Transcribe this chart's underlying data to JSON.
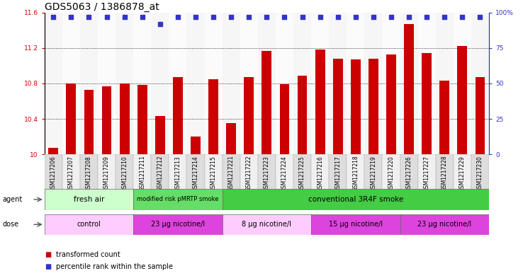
{
  "title": "GDS5063 / 1386878_at",
  "samples": [
    "GSM1217206",
    "GSM1217207",
    "GSM1217208",
    "GSM1217209",
    "GSM1217210",
    "GSM1217211",
    "GSM1217212",
    "GSM1217213",
    "GSM1217214",
    "GSM1217215",
    "GSM1217221",
    "GSM1217222",
    "GSM1217223",
    "GSM1217224",
    "GSM1217225",
    "GSM1217216",
    "GSM1217217",
    "GSM1217218",
    "GSM1217219",
    "GSM1217220",
    "GSM1217226",
    "GSM1217227",
    "GSM1217228",
    "GSM1217229",
    "GSM1217230"
  ],
  "bar_values": [
    10.07,
    10.8,
    10.73,
    10.77,
    10.8,
    10.78,
    10.43,
    10.87,
    10.2,
    10.85,
    10.35,
    10.87,
    11.17,
    10.79,
    10.89,
    11.18,
    11.08,
    11.07,
    11.08,
    11.13,
    11.47,
    11.14,
    10.83,
    11.22,
    10.87
  ],
  "percentile_values": [
    97,
    97,
    97,
    97,
    97,
    97,
    92,
    97,
    97,
    97,
    97,
    97,
    97,
    97,
    97,
    97,
    97,
    97,
    97,
    97,
    97,
    97,
    97,
    97,
    97
  ],
  "bar_color": "#cc0000",
  "percentile_color": "#3333cc",
  "ylim_left": [
    10.0,
    11.6
  ],
  "ylim_right": [
    0,
    100
  ],
  "yticks_left": [
    10.0,
    10.4,
    10.8,
    11.2,
    11.6
  ],
  "ytick_labels_left": [
    "10",
    "10.4",
    "10.8",
    "11.2",
    "11.6"
  ],
  "yticks_right": [
    0,
    25,
    50,
    75,
    100
  ],
  "ytick_labels_right": [
    "0",
    "25",
    "50",
    "75",
    "100%"
  ],
  "hgrid_values": [
    10.4,
    10.8,
    11.2
  ],
  "agent_groups": [
    {
      "label": "fresh air",
      "start": 0,
      "end": 5,
      "color": "#ccffcc"
    },
    {
      "label": "modified risk pMRTP smoke",
      "start": 5,
      "end": 10,
      "color": "#66dd66"
    },
    {
      "label": "conventional 3R4F smoke",
      "start": 10,
      "end": 25,
      "color": "#44cc44"
    }
  ],
  "dose_groups": [
    {
      "label": "control",
      "start": 0,
      "end": 5,
      "color": "#ffccff"
    },
    {
      "label": "23 µg nicotine/l",
      "start": 5,
      "end": 10,
      "color": "#dd44dd"
    },
    {
      "label": "8 µg nicotine/l",
      "start": 10,
      "end": 15,
      "color": "#ffccff"
    },
    {
      "label": "15 µg nicotine/l",
      "start": 15,
      "end": 20,
      "color": "#dd44dd"
    },
    {
      "label": "23 µg nicotine/l",
      "start": 20,
      "end": 25,
      "color": "#dd44dd"
    }
  ],
  "legend_items": [
    {
      "label": "transformed count",
      "color": "#cc0000"
    },
    {
      "label": "percentile rank within the sample",
      "color": "#3333cc"
    }
  ],
  "agent_label": "agent",
  "dose_label": "dose",
  "title_fontsize": 10,
  "tick_fontsize": 6.5,
  "bar_width": 0.55,
  "col_bg_odd": "#dddddd",
  "col_bg_even": "#f0f0f0"
}
